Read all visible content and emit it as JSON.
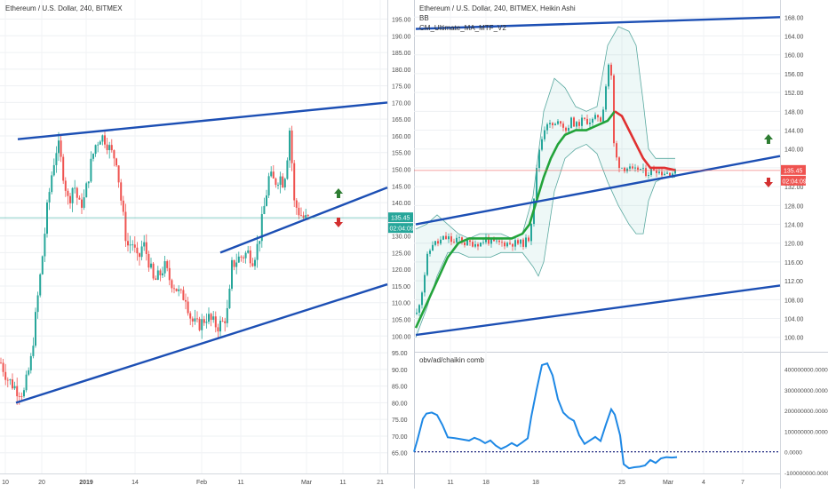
{
  "left_panel": {
    "header": "Ethereum / U.S. Dollar, 240, BITMEX",
    "price_label": "135.45",
    "timer_label": "02:04:09"
  },
  "right_panel": {
    "header": "Ethereum / U.S. Dollar, 240, BITMEX, Heikin Ashi",
    "indicator_1": "BB",
    "indicator_2": "CM_Ultimate_MA_MTF_V2",
    "price_label": "135.45",
    "timer_label": "02:04:09",
    "oscillator_title": "obv/ad/chaikin comb"
  },
  "colors": {
    "bull": "#26a69a",
    "bear": "#ef5350",
    "trendline": "#1c4fb4",
    "ma_up": "#22a33a",
    "ma_down": "#e03030",
    "osc_line": "#1e88e5",
    "up_arrow": "#2e7d32",
    "down_arrow": "#d32f2f"
  },
  "chart_data": [
    {
      "type": "candlestick",
      "title": "Ethereum / U.S. Dollar, 240, BITMEX",
      "y_ticks": [
        "195.00",
        "190.00",
        "185.00",
        "180.00",
        "175.00",
        "170.00",
        "165.00",
        "160.00",
        "155.00",
        "150.00",
        "145.00",
        "140.00",
        "135.00",
        "130.00",
        "125.00",
        "120.00",
        "115.00",
        "110.00",
        "105.00",
        "100.00",
        "95.00",
        "90.00",
        "85.00",
        "80.00",
        "75.00",
        "70.00",
        "65.00"
      ],
      "ylim": [
        62,
        197
      ],
      "x_ticks": [
        "10",
        "20",
        "2019",
        "14",
        "Feb",
        "11",
        "Mar",
        "11",
        "21"
      ],
      "last_price": 135.45,
      "path_points": [
        [
          0,
          92
        ],
        [
          8,
          87
        ],
        [
          18,
          84
        ],
        [
          26,
          83
        ],
        [
          34,
          93
        ],
        [
          40,
          108
        ],
        [
          46,
          122
        ],
        [
          52,
          138
        ],
        [
          58,
          150
        ],
        [
          64,
          158
        ],
        [
          70,
          149
        ],
        [
          76,
          140
        ],
        [
          82,
          146
        ],
        [
          88,
          139
        ],
        [
          94,
          141
        ],
        [
          100,
          150
        ],
        [
          106,
          157
        ],
        [
          112,
          160
        ],
        [
          118,
          159
        ],
        [
          124,
          155
        ],
        [
          130,
          153
        ],
        [
          136,
          139
        ],
        [
          142,
          127
        ],
        [
          148,
          128
        ],
        [
          154,
          122
        ],
        [
          160,
          128
        ],
        [
          166,
          123
        ],
        [
          172,
          116
        ],
        [
          178,
          118
        ],
        [
          184,
          121
        ],
        [
          190,
          117
        ],
        [
          196,
          115
        ],
        [
          202,
          112
        ],
        [
          208,
          112
        ],
        [
          214,
          105
        ],
        [
          220,
          103
        ],
        [
          226,
          104
        ],
        [
          232,
          106
        ],
        [
          238,
          104
        ],
        [
          244,
          103
        ],
        [
          250,
          104
        ],
        [
          256,
          108
        ],
        [
          260,
          121
        ],
        [
          266,
          123
        ],
        [
          272,
          124
        ],
        [
          278,
          125
        ],
        [
          284,
          123
        ],
        [
          290,
          128
        ],
        [
          296,
          138
        ],
        [
          302,
          148
        ],
        [
          308,
          146
        ],
        [
          314,
          148
        ],
        [
          318,
          146
        ],
        [
          322,
          152
        ],
        [
          324,
          164
        ],
        [
          326,
          160
        ],
        [
          330,
          140
        ],
        [
          336,
          137
        ],
        [
          342,
          135
        ],
        [
          348,
          135
        ]
      ],
      "trendlines": [
        {
          "from": [
            20,
            159
          ],
          "to": [
            436,
            170
          ]
        },
        {
          "from": [
            18,
            80
          ],
          "to": [
            436,
            115.5
          ]
        },
        {
          "from": [
            248,
            125
          ],
          "to": [
            436,
            144.5
          ]
        }
      ]
    },
    {
      "type": "candlestick",
      "title": "Ethereum / U.S. Dollar, 240, BITMEX, Heikin Ashi",
      "y_ticks": [
        "168.00",
        "164.00",
        "160.00",
        "156.00",
        "152.00",
        "148.00",
        "144.00",
        "140.00",
        "136.00",
        "132.00",
        "128.00",
        "124.00",
        "120.00",
        "116.00",
        "112.00",
        "108.00",
        "104.00",
        "100.00"
      ],
      "ylim": [
        97.5,
        169
      ],
      "x_ticks": [
        "11",
        "18",
        "25",
        "Mar",
        "4",
        "7"
      ],
      "x_ticks_partial": [
        "11",
        "18",
        "25",
        "Mar",
        "4",
        "7"
      ],
      "last_price": 135.45,
      "path_points": [
        [
          468,
          105
        ],
        [
          474,
          110
        ],
        [
          480,
          117
        ],
        [
          486,
          120
        ],
        [
          492,
          120
        ],
        [
          498,
          121
        ],
        [
          504,
          121
        ],
        [
          510,
          120
        ],
        [
          516,
          121
        ],
        [
          522,
          120
        ],
        [
          528,
          120
        ],
        [
          534,
          120
        ],
        [
          540,
          120
        ],
        [
          546,
          121
        ],
        [
          552,
          120
        ],
        [
          558,
          120
        ],
        [
          564,
          120
        ],
        [
          570,
          120
        ],
        [
          576,
          120
        ],
        [
          582,
          120
        ],
        [
          588,
          120
        ],
        [
          594,
          121
        ],
        [
          598,
          126
        ],
        [
          602,
          134
        ],
        [
          606,
          140
        ],
        [
          610,
          143
        ],
        [
          614,
          146
        ],
        [
          618,
          145
        ],
        [
          624,
          145
        ],
        [
          630,
          146
        ],
        [
          636,
          144
        ],
        [
          642,
          146
        ],
        [
          648,
          145
        ],
        [
          654,
          146
        ],
        [
          660,
          146
        ],
        [
          666,
          146
        ],
        [
          672,
          147
        ],
        [
          676,
          146
        ],
        [
          680,
          152
        ],
        [
          684,
          158
        ],
        [
          686,
          160
        ],
        [
          690,
          141
        ],
        [
          694,
          137
        ],
        [
          700,
          136
        ],
        [
          706,
          136
        ],
        [
          712,
          135
        ],
        [
          718,
          136
        ],
        [
          724,
          135
        ],
        [
          730,
          135
        ],
        [
          736,
          136
        ],
        [
          742,
          135
        ],
        [
          748,
          135
        ],
        [
          754,
          135
        ],
        [
          760,
          135
        ]
      ],
      "bollinger_upper": [
        [
          468,
          123
        ],
        [
          480,
          124
        ],
        [
          492,
          126
        ],
        [
          504,
          124
        ],
        [
          516,
          122
        ],
        [
          528,
          121
        ],
        [
          540,
          122
        ],
        [
          552,
          122
        ],
        [
          564,
          122
        ],
        [
          576,
          121
        ],
        [
          588,
          122
        ],
        [
          600,
          130
        ],
        [
          612,
          148
        ],
        [
          624,
          155
        ],
        [
          636,
          153
        ],
        [
          648,
          149
        ],
        [
          660,
          148
        ],
        [
          672,
          149
        ],
        [
          684,
          162
        ],
        [
          696,
          166
        ],
        [
          708,
          165
        ],
        [
          716,
          162
        ],
        [
          724,
          150
        ],
        [
          730,
          140
        ],
        [
          738,
          138
        ],
        [
          748,
          138
        ],
        [
          760,
          138
        ]
      ],
      "bollinger_lower": [
        [
          468,
          100
        ],
        [
          480,
          106
        ],
        [
          492,
          113
        ],
        [
          504,
          118
        ],
        [
          516,
          118
        ],
        [
          528,
          117
        ],
        [
          540,
          117
        ],
        [
          552,
          117
        ],
        [
          564,
          118
        ],
        [
          576,
          118
        ],
        [
          588,
          118
        ],
        [
          600,
          115
        ],
        [
          606,
          113
        ],
        [
          612,
          116
        ],
        [
          624,
          131
        ],
        [
          636,
          138
        ],
        [
          648,
          140
        ],
        [
          660,
          141
        ],
        [
          672,
          139
        ],
        [
          684,
          133
        ],
        [
          696,
          128
        ],
        [
          708,
          124
        ],
        [
          716,
          122
        ],
        [
          724,
          122
        ],
        [
          730,
          129
        ],
        [
          738,
          133
        ],
        [
          748,
          134
        ],
        [
          760,
          134
        ]
      ],
      "ma_up": [
        [
          468,
          102
        ],
        [
          480,
          107
        ],
        [
          492,
          112
        ],
        [
          504,
          117
        ],
        [
          516,
          120
        ],
        [
          528,
          121
        ],
        [
          540,
          121
        ],
        [
          552,
          121
        ],
        [
          564,
          121
        ],
        [
          576,
          121
        ],
        [
          588,
          122
        ],
        [
          596,
          124
        ],
        [
          604,
          129
        ],
        [
          612,
          134
        ],
        [
          620,
          138
        ],
        [
          628,
          141
        ],
        [
          636,
          143
        ],
        [
          648,
          144
        ],
        [
          660,
          144
        ],
        [
          672,
          145
        ],
        [
          684,
          146
        ],
        [
          692,
          148
        ]
      ],
      "ma_down": [
        [
          692,
          148
        ],
        [
          700,
          147
        ],
        [
          708,
          144
        ],
        [
          716,
          141
        ],
        [
          724,
          138
        ],
        [
          732,
          136
        ],
        [
          740,
          136
        ],
        [
          748,
          136
        ],
        [
          760,
          135.5
        ]
      ],
      "trendlines": [
        {
          "from": [
            468,
            124
          ],
          "to": [
            878,
            138.5
          ]
        },
        {
          "from": [
            468,
            100.5
          ],
          "to": [
            878,
            111
          ]
        },
        {
          "from": [
            468,
            165.5
          ],
          "to": [
            878,
            168
          ]
        }
      ]
    },
    {
      "type": "line",
      "title": "obv/ad/chaikin comb",
      "y_ticks": [
        "400000000.0000",
        "300000000.0000",
        "200000000.0000",
        "100000000.0000",
        "0.0000",
        "-100000000.0000"
      ],
      "ylim": [
        -105000000,
        450000000
      ],
      "points": [
        [
          466,
          0
        ],
        [
          470,
          60000000
        ],
        [
          476,
          160000000
        ],
        [
          480,
          185000000
        ],
        [
          486,
          190000000
        ],
        [
          492,
          178000000
        ],
        [
          498,
          130000000
        ],
        [
          504,
          70000000
        ],
        [
          512,
          66000000
        ],
        [
          520,
          60000000
        ],
        [
          528,
          54000000
        ],
        [
          534,
          68000000
        ],
        [
          540,
          58000000
        ],
        [
          546,
          42000000
        ],
        [
          552,
          55000000
        ],
        [
          558,
          30000000
        ],
        [
          564,
          14000000
        ],
        [
          570,
          26000000
        ],
        [
          576,
          42000000
        ],
        [
          582,
          28000000
        ],
        [
          588,
          46000000
        ],
        [
          594,
          65000000
        ],
        [
          598,
          170000000
        ],
        [
          604,
          300000000
        ],
        [
          610,
          420000000
        ],
        [
          616,
          428000000
        ],
        [
          622,
          370000000
        ],
        [
          628,
          255000000
        ],
        [
          634,
          190000000
        ],
        [
          640,
          165000000
        ],
        [
          646,
          150000000
        ],
        [
          652,
          80000000
        ],
        [
          658,
          38000000
        ],
        [
          664,
          55000000
        ],
        [
          670,
          72000000
        ],
        [
          676,
          52000000
        ],
        [
          682,
          132000000
        ],
        [
          688,
          206000000
        ],
        [
          692,
          180000000
        ],
        [
          698,
          80000000
        ],
        [
          702,
          -60000000
        ],
        [
          708,
          -80000000
        ],
        [
          714,
          -75000000
        ],
        [
          720,
          -72000000
        ],
        [
          726,
          -66000000
        ],
        [
          732,
          -40000000
        ],
        [
          738,
          -54000000
        ],
        [
          744,
          -32000000
        ],
        [
          750,
          -26000000
        ],
        [
          756,
          -28000000
        ],
        [
          762,
          -26000000
        ]
      ]
    }
  ]
}
